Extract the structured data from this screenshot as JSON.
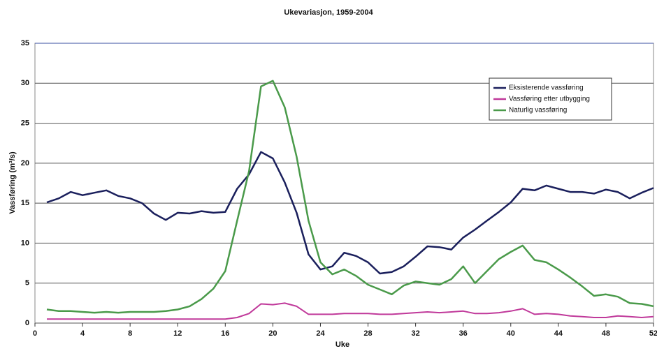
{
  "chart_data": {
    "type": "line",
    "title": "Ukevariasjon, 1959-2004",
    "x_label": "Uke",
    "y_label": "Vassføring (m³/s)",
    "x": [
      1,
      2,
      3,
      4,
      5,
      6,
      7,
      8,
      9,
      10,
      11,
      12,
      13,
      14,
      15,
      16,
      17,
      18,
      19,
      20,
      21,
      22,
      23,
      24,
      25,
      26,
      27,
      28,
      29,
      30,
      31,
      32,
      33,
      34,
      35,
      36,
      37,
      38,
      39,
      40,
      41,
      42,
      43,
      44,
      45,
      46,
      47,
      48,
      49,
      50,
      51,
      52
    ],
    "series": [
      {
        "name": "Eksisterende vassføring",
        "color": "#1a1f5c",
        "values": [
          15.1,
          15.6,
          16.4,
          16.0,
          16.3,
          16.6,
          15.9,
          15.6,
          15.0,
          13.7,
          12.9,
          13.8,
          13.7,
          14.0,
          13.8,
          13.9,
          16.8,
          18.6,
          21.4,
          20.6,
          17.6,
          13.8,
          8.6,
          6.7,
          7.1,
          8.8,
          8.4,
          7.6,
          6.2,
          6.4,
          7.1,
          8.3,
          9.6,
          9.5,
          9.2,
          10.7,
          11.7,
          12.8,
          13.9,
          15.1,
          16.8,
          16.6,
          17.2,
          16.8,
          16.4,
          16.4,
          16.2,
          16.7,
          16.4,
          15.6,
          16.3,
          16.9
        ]
      },
      {
        "name": "Vassføring etter utbygging",
        "color": "#c0399a",
        "values": [
          0.5,
          0.5,
          0.5,
          0.5,
          0.5,
          0.5,
          0.5,
          0.5,
          0.5,
          0.5,
          0.5,
          0.5,
          0.5,
          0.5,
          0.5,
          0.5,
          0.7,
          1.2,
          2.4,
          2.3,
          2.5,
          2.1,
          1.1,
          1.1,
          1.1,
          1.2,
          1.2,
          1.2,
          1.1,
          1.1,
          1.2,
          1.3,
          1.4,
          1.3,
          1.4,
          1.5,
          1.2,
          1.2,
          1.3,
          1.5,
          1.8,
          1.1,
          1.2,
          1.1,
          0.9,
          0.8,
          0.7,
          0.7,
          0.9,
          0.8,
          0.7,
          0.8
        ]
      },
      {
        "name": "Naturlig vassføring",
        "color": "#4a9a4a",
        "values": [
          1.7,
          1.5,
          1.5,
          1.4,
          1.3,
          1.4,
          1.3,
          1.4,
          1.4,
          1.4,
          1.5,
          1.7,
          2.1,
          3.0,
          4.3,
          6.5,
          12.8,
          19.0,
          29.6,
          30.3,
          27.0,
          20.8,
          12.8,
          7.6,
          6.1,
          6.7,
          5.9,
          4.8,
          4.2,
          3.6,
          4.7,
          5.2,
          5.0,
          4.8,
          5.5,
          7.1,
          5.0,
          6.5,
          8.0,
          8.9,
          9.7,
          7.9,
          7.6,
          6.7,
          5.7,
          4.6,
          3.4,
          3.6,
          3.3,
          2.5,
          2.4,
          2.1
        ]
      }
    ],
    "xlim": [
      0,
      52
    ],
    "xticks": [
      0,
      4,
      8,
      12,
      16,
      20,
      24,
      28,
      32,
      36,
      40,
      44,
      48,
      52
    ],
    "ylim": [
      0,
      35
    ],
    "yticks": [
      0,
      5,
      10,
      15,
      20,
      25,
      30,
      35
    ],
    "grid": true,
    "legend": "upper right"
  }
}
